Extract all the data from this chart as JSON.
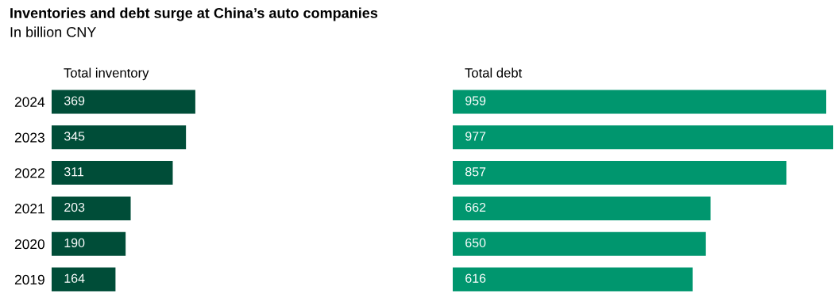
{
  "chart_data": [
    {
      "type": "bar",
      "orientation": "horizontal",
      "title": "Inventories and debt surge at China’s auto companies",
      "subtitle": "In billion CNY",
      "xlabel": "Total inventory",
      "categories": [
        "2024",
        "2023",
        "2022",
        "2021",
        "2020",
        "2019"
      ],
      "values": [
        369,
        345,
        311,
        203,
        190,
        164
      ],
      "color": "#004d38",
      "data_labels": true,
      "tick_labels": "y",
      "grid": false,
      "legend": false
    },
    {
      "type": "bar",
      "orientation": "horizontal",
      "xlabel": "Total debt",
      "categories": [
        "2024",
        "2023",
        "2022",
        "2021",
        "2020",
        "2019"
      ],
      "values": [
        959,
        977,
        857,
        662,
        650,
        616
      ],
      "color": "#00966e",
      "data_labels": true,
      "tick_labels": false,
      "grid": false,
      "legend": false
    }
  ]
}
